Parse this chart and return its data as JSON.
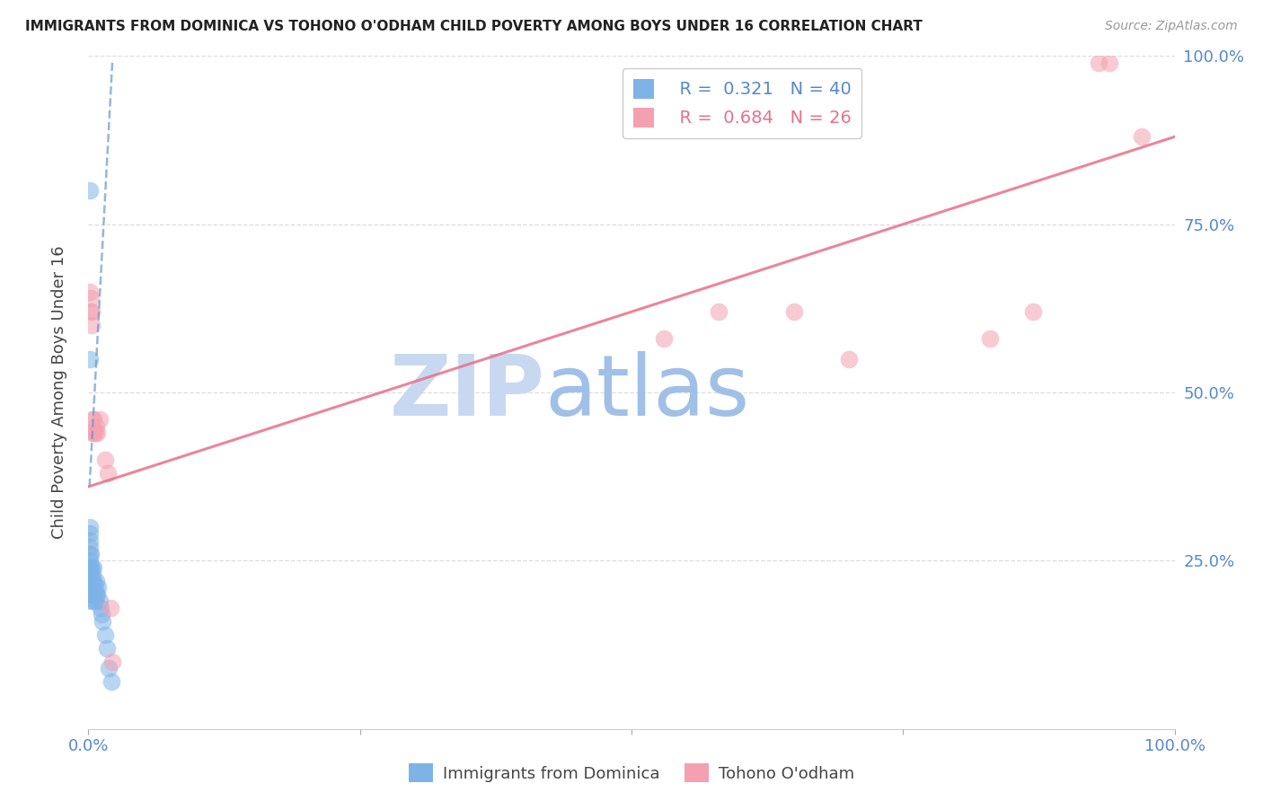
{
  "title": "IMMIGRANTS FROM DOMINICA VS TOHONO O'ODHAM CHILD POVERTY AMONG BOYS UNDER 16 CORRELATION CHART",
  "source": "Source: ZipAtlas.com",
  "ylabel": "Child Poverty Among Boys Under 16",
  "xlim": [
    0.0,
    1.0
  ],
  "ylim": [
    0.0,
    1.0
  ],
  "yticks_right": [
    0.25,
    0.5,
    0.75,
    1.0
  ],
  "ytick_labels_right": [
    "25.0%",
    "50.0%",
    "75.0%",
    "100.0%"
  ],
  "legend_blue_r": "R =  0.321",
  "legend_blue_n": "N = 40",
  "legend_pink_r": "R =  0.684",
  "legend_pink_n": "N = 26",
  "blue_color": "#7EB3E8",
  "pink_color": "#F4A0B0",
  "blue_line_color": "#6699CC",
  "pink_line_color": "#E8708A",
  "watermark_zip": "ZIP",
  "watermark_atlas": "atlas",
  "watermark_color_zip": "#C8D8F0",
  "watermark_color_atlas": "#A0C0E8",
  "background_color": "#FFFFFF",
  "grid_color": "#DDDDDD",
  "blue_scatter_x": [
    0.001,
    0.001,
    0.001,
    0.001,
    0.001,
    0.001,
    0.001,
    0.001,
    0.001,
    0.001,
    0.002,
    0.002,
    0.002,
    0.002,
    0.002,
    0.003,
    0.003,
    0.003,
    0.004,
    0.004,
    0.004,
    0.005,
    0.005,
    0.005,
    0.006,
    0.006,
    0.007,
    0.007,
    0.008,
    0.009,
    0.01,
    0.011,
    0.012,
    0.013,
    0.015,
    0.017,
    0.019,
    0.021,
    0.001,
    0.001
  ],
  "blue_scatter_y": [
    0.21,
    0.22,
    0.23,
    0.24,
    0.25,
    0.26,
    0.27,
    0.28,
    0.29,
    0.3,
    0.19,
    0.21,
    0.23,
    0.24,
    0.26,
    0.2,
    0.22,
    0.24,
    0.19,
    0.21,
    0.23,
    0.2,
    0.22,
    0.24,
    0.19,
    0.21,
    0.2,
    0.22,
    0.2,
    0.21,
    0.19,
    0.18,
    0.17,
    0.16,
    0.14,
    0.12,
    0.09,
    0.07,
    0.8,
    0.55
  ],
  "pink_scatter_x": [
    0.001,
    0.002,
    0.002,
    0.003,
    0.003,
    0.004,
    0.004,
    0.005,
    0.005,
    0.006,
    0.007,
    0.008,
    0.01,
    0.015,
    0.018,
    0.02,
    0.022,
    0.53,
    0.58,
    0.65,
    0.7,
    0.83,
    0.87,
    0.93,
    0.94,
    0.97
  ],
  "pink_scatter_y": [
    0.65,
    0.62,
    0.64,
    0.6,
    0.62,
    0.44,
    0.46,
    0.44,
    0.46,
    0.44,
    0.45,
    0.44,
    0.46,
    0.4,
    0.38,
    0.18,
    0.1,
    0.58,
    0.62,
    0.62,
    0.55,
    0.58,
    0.62,
    0.99,
    0.99,
    0.88
  ],
  "blue_trendline_x": [
    0.001,
    0.022
  ],
  "blue_trendline_y": [
    0.36,
    0.99
  ],
  "pink_trendline_x": [
    0.0,
    1.0
  ],
  "pink_trendline_y": [
    0.36,
    0.88
  ]
}
